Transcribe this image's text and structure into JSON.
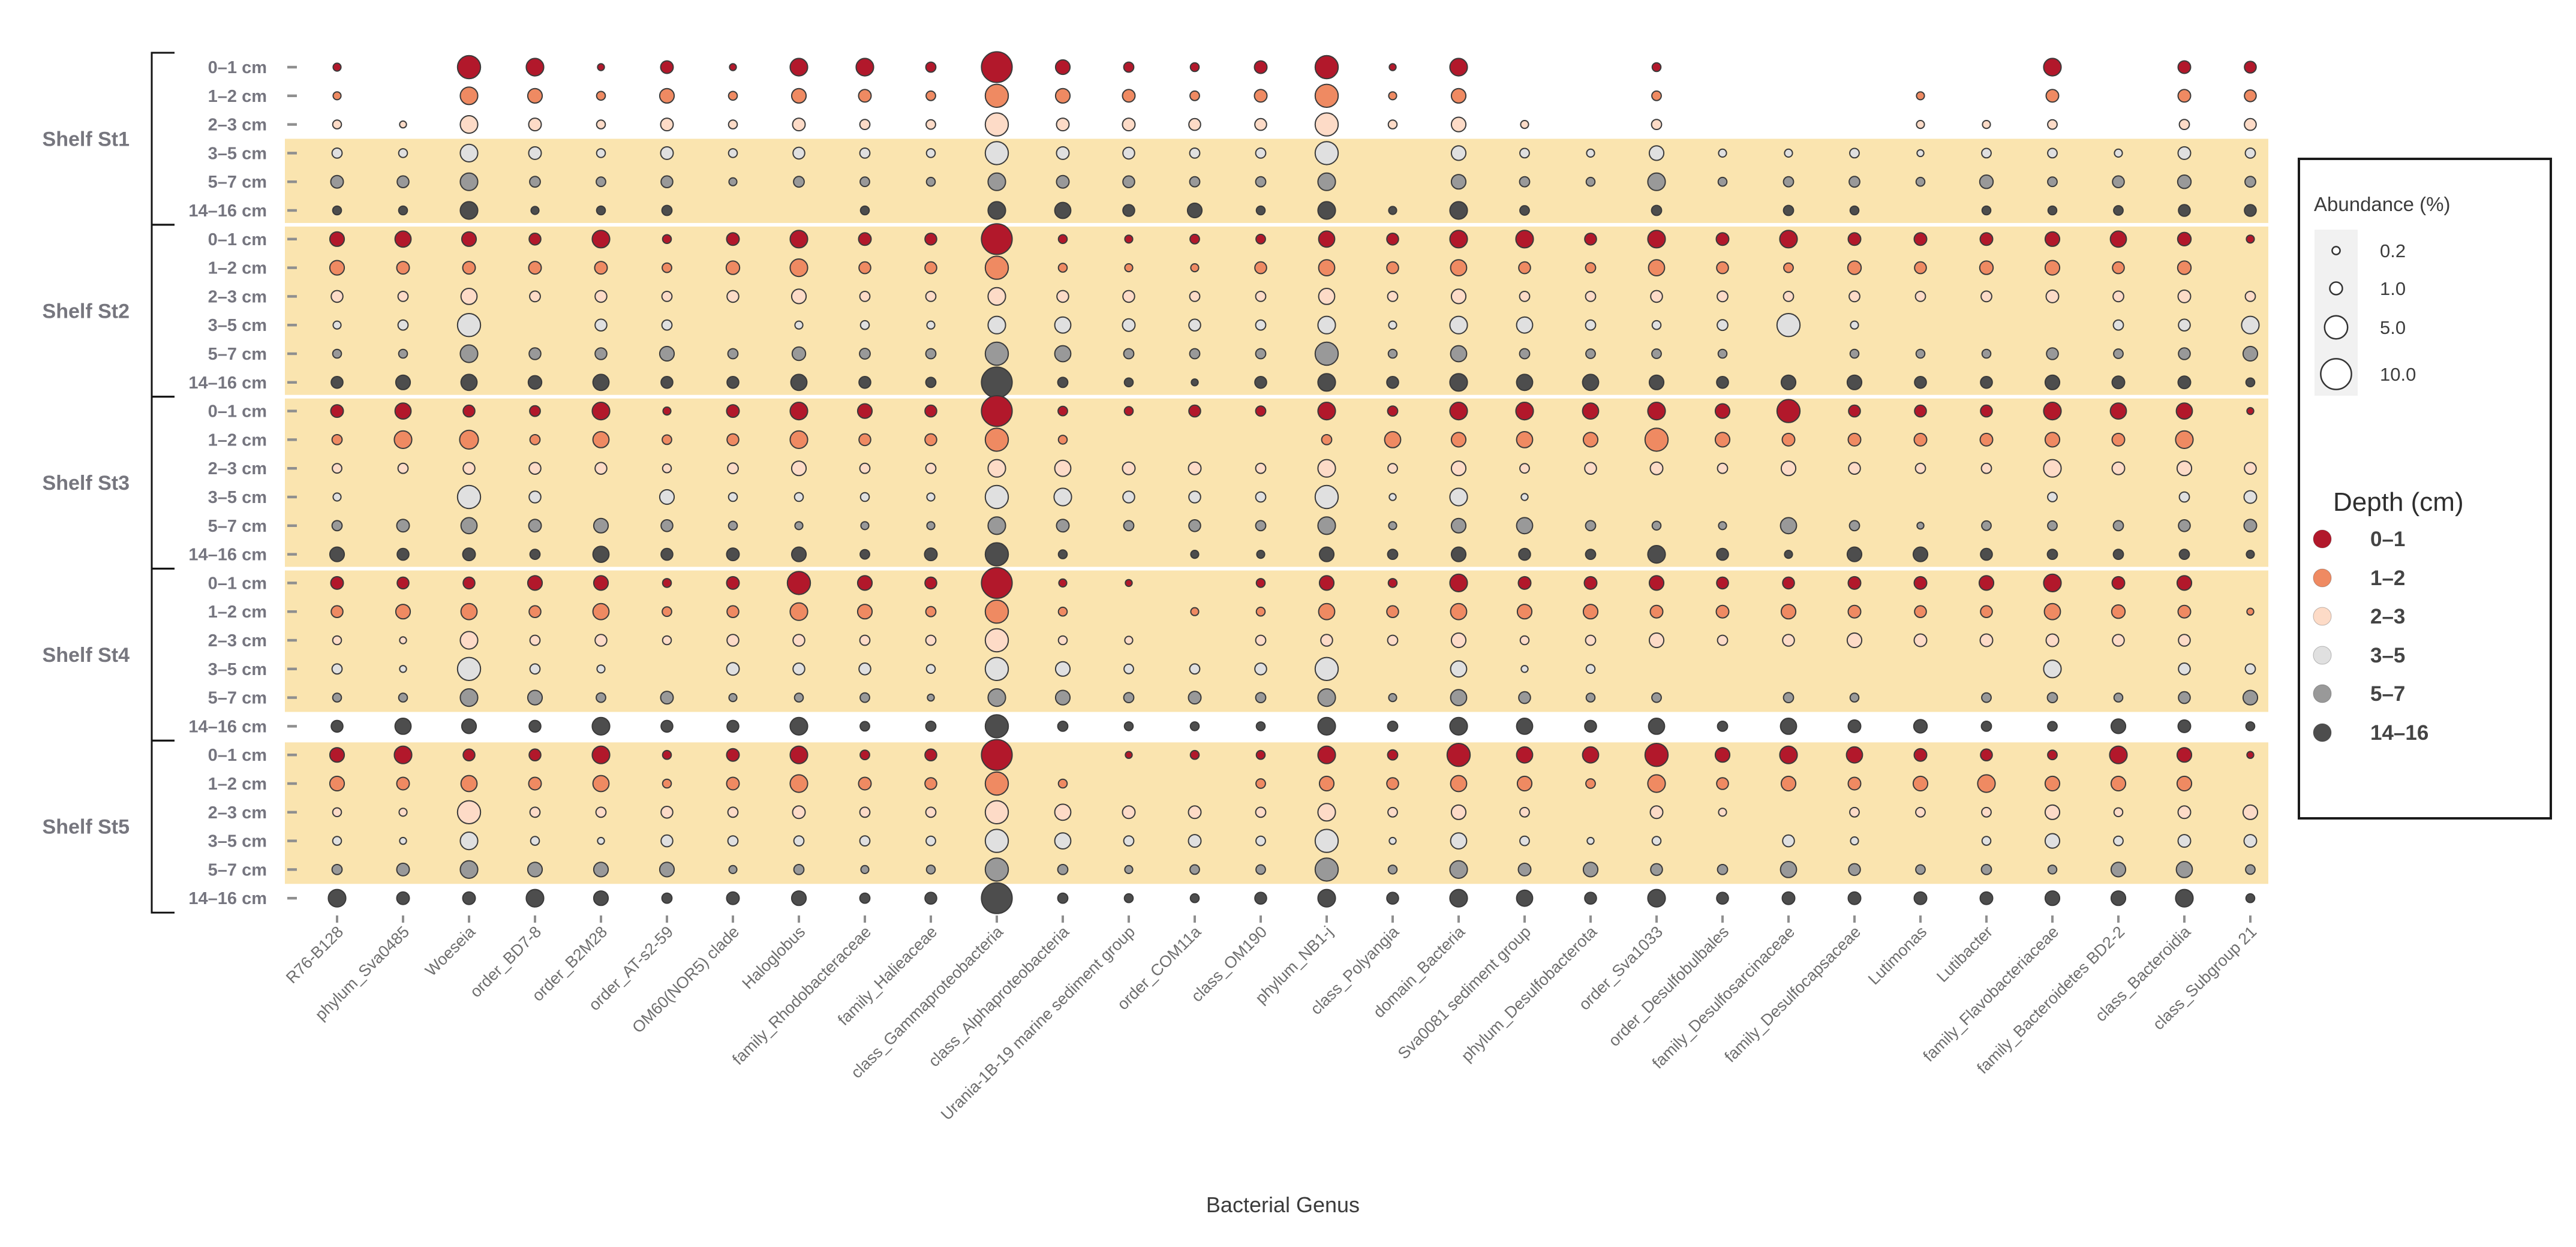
{
  "chart_data": {
    "type": "bubble-matrix",
    "xlabel": "Bacterial Genus",
    "grid": false,
    "legend_position": "right",
    "legend": {
      "size_title": "Abundance (%)",
      "size_breaks": [
        0.2,
        1.0,
        5.0,
        10.0
      ],
      "size_break_labels": [
        "0.2",
        "1.0",
        "5.0",
        "10.0"
      ],
      "color_title": "Depth (cm)",
      "color_labels": [
        "0–1",
        "1–2",
        "2–3",
        "3–5",
        "5–7",
        "14–16"
      ],
      "color_values": [
        "#B2182B",
        "#EF8A62",
        "#FDDBC7",
        "#E0E0E0",
        "#999999",
        "#4D4D4D"
      ]
    },
    "depth_row_labels": [
      "0–1 cm",
      "1–2 cm",
      "2–3 cm",
      "3–5 cm",
      "5–7 cm",
      "14–16 cm"
    ],
    "stations": [
      {
        "name": "Shelf St1",
        "highlight": [
          false,
          false,
          false,
          true,
          true,
          true
        ]
      },
      {
        "name": "Shelf St2",
        "highlight": [
          true,
          true,
          true,
          true,
          true,
          true
        ]
      },
      {
        "name": "Shelf St3",
        "highlight": [
          true,
          true,
          true,
          true,
          true,
          true
        ]
      },
      {
        "name": "Shelf St4",
        "highlight": [
          true,
          true,
          true,
          true,
          true,
          false
        ]
      },
      {
        "name": "Shelf St5",
        "highlight": [
          true,
          true,
          true,
          true,
          true,
          false
        ]
      }
    ],
    "categories": [
      "R76-B128",
      "phylum_Sva0485",
      "Woeseia",
      "order_BD7-8",
      "order_B2M28",
      "order_AT-s2-59",
      "OM60(NOR5) clade",
      "Haloglobus",
      "family_Rhodobacteraceae",
      "family_Halieaceae",
      "class_Gammaproteobacteria",
      "class_Alphaproteobacteria",
      "Urania-1B-19 marine sediment group",
      "order_COM11a",
      "class_OM190",
      "phylum_NB1-j",
      "class_Polyangia",
      "domain_Bacteria",
      "Sva0081 sediment group",
      "phylum_Desulfobacterota",
      "order_Sva1033",
      "order_Desulfobulbales",
      "family_Desulfosarcinaceae",
      "family_Desulfocapsaceae",
      "Lutimonas",
      "Lutibacter",
      "family_Flavobacteriaceae",
      "family_Bacteroidetes BD2-2",
      "class_Bacteroidia",
      "class_Subgroup 21"
    ],
    "values": [
      [
        0.2,
        0,
        5,
        2.5,
        0.1,
        1,
        0.1,
        2.5,
        2.5,
        0.5,
        10,
        1.5,
        0.5,
        0.3,
        1,
        5,
        0.1,
        2.5,
        0,
        0,
        0.3,
        0,
        0,
        0,
        0,
        0,
        2.5,
        0,
        1,
        0.8
      ],
      [
        0.2,
        0,
        2.5,
        1.5,
        0.3,
        1.5,
        0.3,
        1.5,
        1,
        0.4,
        5,
        1.5,
        1,
        0.4,
        1,
        5,
        0.2,
        1.5,
        0,
        0,
        0.4,
        0,
        0,
        0,
        0.2,
        0,
        1,
        0,
        1,
        0.8
      ],
      [
        0.3,
        0.1,
        2.5,
        1,
        0.3,
        1,
        0.3,
        1,
        0.5,
        0.4,
        5,
        1,
        1,
        0.8,
        0.8,
        5,
        0.3,
        1.5,
        0.2,
        0,
        0.5,
        0,
        0,
        0,
        0.2,
        0.2,
        0.4,
        0,
        0.5,
        0.8
      ],
      [
        0.5,
        0.3,
        2.5,
        1,
        0.3,
        1,
        0.3,
        0.8,
        0.5,
        0.3,
        5,
        1,
        0.8,
        0.5,
        0.5,
        5,
        0,
        1.5,
        0.4,
        0.2,
        1.5,
        0.2,
        0.2,
        0.4,
        0.1,
        0.4,
        0.4,
        0.2,
        1,
        0.5
      ],
      [
        1,
        0.8,
        2.5,
        0.6,
        0.4,
        0.8,
        0.2,
        0.6,
        0.4,
        0.3,
        2.5,
        1,
        0.8,
        0.5,
        0.5,
        2.5,
        0,
        1.5,
        0.5,
        0.3,
        2.5,
        0.3,
        0.5,
        0.6,
        0.3,
        1.2,
        0.4,
        0.8,
        1.2,
        0.6
      ],
      [
        0.3,
        0.3,
        2.5,
        0.2,
        0.3,
        0.5,
        0,
        0,
        0.3,
        0,
        2.5,
        2,
        0.8,
        1.5,
        0.3,
        2.5,
        0.2,
        2.5,
        0.4,
        0,
        0.5,
        0,
        0.5,
        0.3,
        0,
        0.3,
        0.3,
        0.4,
        0.8,
        0.8
      ],
      [
        1.5,
        2,
        1.5,
        0.8,
        2.5,
        0.3,
        1,
        2.5,
        1,
        0.8,
        10,
        0.3,
        0.2,
        0.4,
        0.4,
        2,
        0.8,
        2.5,
        2.5,
        0.8,
        2.5,
        1,
        2.5,
        1,
        1,
        1,
        1.5,
        2,
        1.2,
        0.2
      ],
      [
        1.5,
        1,
        1,
        1,
        1,
        0.4,
        1.2,
        2.5,
        0.8,
        0.8,
        5,
        0.3,
        0.2,
        0.2,
        0.8,
        2,
        0.8,
        2,
        0.8,
        0.5,
        2,
        0.8,
        0.4,
        1.2,
        0.8,
        1.2,
        1.5,
        0.8,
        1.2,
        0
      ],
      [
        0.8,
        0.5,
        2,
        0.6,
        0.8,
        0.5,
        0.8,
        1.5,
        0.5,
        0.5,
        2.5,
        0.8,
        0.8,
        0.5,
        0.5,
        2,
        0.5,
        1.5,
        0.5,
        0.5,
        0.8,
        0.6,
        0.5,
        0.6,
        0.5,
        0.6,
        1,
        0.6,
        1,
        0.5
      ],
      [
        0.2,
        0.5,
        5,
        0,
        0.8,
        0.5,
        0,
        0.2,
        0.3,
        0.2,
        2.5,
        2,
        1,
        0.8,
        0.5,
        2.5,
        0.2,
        2.5,
        2,
        0.5,
        0.3,
        0.6,
        5,
        0.2,
        0,
        0,
        0,
        0.5,
        0.8,
        2.5
      ],
      [
        0.3,
        0.3,
        2.5,
        0.8,
        0.8,
        1.5,
        0.5,
        1.2,
        0.6,
        0.5,
        5,
        2,
        0.5,
        0.5,
        0.5,
        5,
        0.3,
        2,
        0.5,
        0.4,
        0.4,
        0.3,
        0,
        0.3,
        0.3,
        0.3,
        0.8,
        0.4,
        0.8,
        1.5
      ],
      [
        0.8,
        1.5,
        2,
        1.2,
        2,
        0.8,
        0.8,
        2,
        0.8,
        0.5,
        10,
        0.5,
        0.3,
        0.1,
        0.8,
        2.5,
        0.8,
        2.5,
        2,
        2,
        1.5,
        0.8,
        1.5,
        1.5,
        0.8,
        0.8,
        1.5,
        1,
        1,
        0.3
      ],
      [
        1,
        2,
        0.8,
        0.6,
        2.5,
        0.2,
        1,
        2.5,
        1.5,
        0.8,
        10,
        0.4,
        0.3,
        0.8,
        0.5,
        2.5,
        0.5,
        2.5,
        2.5,
        2,
        2.5,
        1.5,
        5,
        0.8,
        0.8,
        0.8,
        2.5,
        2,
        2,
        0.1
      ],
      [
        0.5,
        2.5,
        3,
        0.5,
        2,
        0.4,
        0.8,
        2.5,
        0.8,
        0.8,
        5,
        0.3,
        0,
        0,
        0,
        0.5,
        2,
        1.5,
        2,
        1.5,
        5,
        1.5,
        1,
        1,
        1,
        1,
        1.5,
        1,
        2.5,
        0
      ],
      [
        0.4,
        0.5,
        0.8,
        0.8,
        0.8,
        0.3,
        0.6,
        1.5,
        0.5,
        0.5,
        2.5,
        2,
        1,
        1,
        0.5,
        2.5,
        0.4,
        1.5,
        0.4,
        0.8,
        1,
        0.5,
        1.5,
        0.8,
        0.5,
        0.5,
        2.5,
        1,
        1.5,
        0.8
      ],
      [
        0.2,
        0,
        5,
        0.8,
        0,
        1.5,
        0.3,
        0.3,
        0.3,
        0.2,
        5,
        2.5,
        0.8,
        0.8,
        0.5,
        5,
        0.1,
        2.5,
        0.1,
        0,
        0,
        0,
        0,
        0,
        0,
        0,
        0.4,
        0,
        0.5,
        1
      ],
      [
        0.5,
        1,
        2,
        1,
        1.5,
        0.8,
        0.3,
        0.2,
        0.2,
        0.2,
        2.5,
        1,
        0.5,
        0.8,
        0.5,
        2.5,
        0.2,
        1.5,
        2,
        0.5,
        0.3,
        0.2,
        2,
        0.5,
        0.1,
        0.4,
        0.4,
        0.5,
        0.8,
        1
      ],
      [
        1.5,
        0.8,
        1,
        0.5,
        2,
        0.8,
        1,
        1.5,
        0.4,
        1,
        5,
        0.3,
        0,
        0.2,
        0.2,
        1.5,
        0.5,
        1.5,
        0.8,
        0.5,
        2.5,
        0.8,
        0.2,
        1.5,
        1.5,
        0.8,
        0.5,
        0.5,
        0.5,
        0.2
      ],
      [
        1,
        0.8,
        0.8,
        1.5,
        1.5,
        0.3,
        1,
        5,
        1.5,
        0.8,
        10,
        0.2,
        0.1,
        0,
        0.3,
        1.5,
        0.3,
        2.5,
        1,
        1,
        1.5,
        0.8,
        0.8,
        1,
        1,
        1.5,
        2.5,
        1,
        1.5,
        0
      ],
      [
        0.8,
        1.5,
        2,
        0.8,
        2,
        0.4,
        0.8,
        2.5,
        1.5,
        0.5,
        5,
        0.3,
        0,
        0.2,
        0.3,
        2,
        0.8,
        2,
        1.5,
        1.5,
        1,
        1,
        1.5,
        1,
        0.8,
        0.8,
        2,
        1.2,
        1,
        0.1
      ],
      [
        0.3,
        0.1,
        2.5,
        0.5,
        0.8,
        0.3,
        0.8,
        0.8,
        0.5,
        0.5,
        5,
        0.3,
        0.2,
        0,
        0.5,
        0.8,
        0.5,
        1.5,
        0.3,
        0.5,
        1.5,
        0.5,
        0.8,
        1.5,
        1,
        1,
        1,
        0.8,
        0.8,
        0
      ],
      [
        0.5,
        0.1,
        5,
        0.5,
        0.2,
        0,
        1,
        0.8,
        0.8,
        0.3,
        5,
        1.5,
        0.4,
        0.5,
        0.8,
        5,
        0,
        2,
        0.1,
        0.3,
        0,
        0,
        0,
        0,
        0,
        0,
        2.5,
        0,
        0.8,
        0.5
      ],
      [
        0.3,
        0.3,
        2.5,
        1.5,
        0.4,
        1,
        0.2,
        0.3,
        0.4,
        0.1,
        2.5,
        1.5,
        0.5,
        1,
        0.5,
        2.5,
        0.2,
        2,
        0.8,
        0.3,
        0.4,
        0,
        0.5,
        0.3,
        0,
        0.4,
        0.5,
        0.3,
        0.8,
        1.5
      ],
      [
        0.8,
        2,
        1.5,
        0.8,
        2.5,
        0.8,
        0.8,
        2.5,
        0.4,
        0.5,
        5,
        0.5,
        0.3,
        0.3,
        0.3,
        2.5,
        0.5,
        2.5,
        2,
        0.8,
        2,
        0.5,
        2,
        1,
        1.2,
        0.5,
        0.4,
        1.5,
        1,
        0.3
      ],
      [
        1.5,
        2.5,
        0.8,
        0.8,
        2.5,
        0.3,
        1,
        2.5,
        0.4,
        0.8,
        10,
        0,
        0.1,
        0.3,
        0.3,
        2.5,
        0.5,
        5,
        2,
        2,
        5,
        1.5,
        2.5,
        2,
        1,
        0.8,
        0.4,
        2.5,
        1.5,
        0.1
      ],
      [
        1.5,
        1,
        2,
        1,
        2,
        0.3,
        1,
        2.5,
        1,
        0.8,
        5,
        0.3,
        0,
        0,
        0.4,
        1.5,
        0.8,
        2,
        1.5,
        0.4,
        2.5,
        0.8,
        1.5,
        1,
        1.5,
        2.5,
        1.5,
        1.5,
        1.5,
        0
      ],
      [
        0.3,
        0.2,
        5,
        0.5,
        0.5,
        0.8,
        0.5,
        1,
        0.5,
        0.5,
        5,
        2,
        1,
        1,
        0.5,
        2.5,
        0.4,
        1.5,
        0.4,
        0,
        1,
        0.2,
        0,
        0.4,
        0.4,
        0.4,
        1.5,
        0.3,
        1,
        1.5
      ],
      [
        0.3,
        0.1,
        2.5,
        0.3,
        0.1,
        0.8,
        0.5,
        0.5,
        0.5,
        0.4,
        5,
        2,
        0.5,
        1,
        0.4,
        5,
        0.1,
        2,
        0.4,
        0.1,
        0.3,
        0,
        0.8,
        0.2,
        0,
        0.3,
        1.5,
        0.4,
        1,
        1
      ],
      [
        0.5,
        1,
        2.5,
        1.5,
        1.5,
        1.5,
        0.2,
        0.5,
        0.2,
        0.3,
        5,
        0.5,
        0.2,
        0.4,
        0.4,
        5,
        0.3,
        2.5,
        1,
        1.5,
        0.8,
        0.5,
        2,
        0.8,
        0.4,
        0.5,
        0.3,
        1.5,
        2,
        0.4
      ],
      [
        2.5,
        1,
        1,
        2.5,
        1.5,
        0.5,
        1,
        1.5,
        0.5,
        0.8,
        10,
        0.5,
        0.3,
        0.3,
        0.8,
        2.5,
        0.8,
        2.5,
        2,
        0.8,
        2.5,
        0.8,
        1,
        1,
        1,
        1,
        1.5,
        1.5,
        2.5,
        0.3
      ]
    ],
    "style": {
      "band_color": "#FAE4AF",
      "bubble_stroke": "#3A3A3A",
      "tick_color": "#8F8F8F",
      "axis_label_color": "#6E6E6E",
      "row_label_color": "#75757F",
      "station_label_color": "#76767E",
      "title_color": "#3B3B3B",
      "bracket_color": "#141414",
      "legend_border": "#1A1A1A",
      "legend_key_bg": "#F1F1F1",
      "legend_text": "#3C3C3C"
    }
  }
}
